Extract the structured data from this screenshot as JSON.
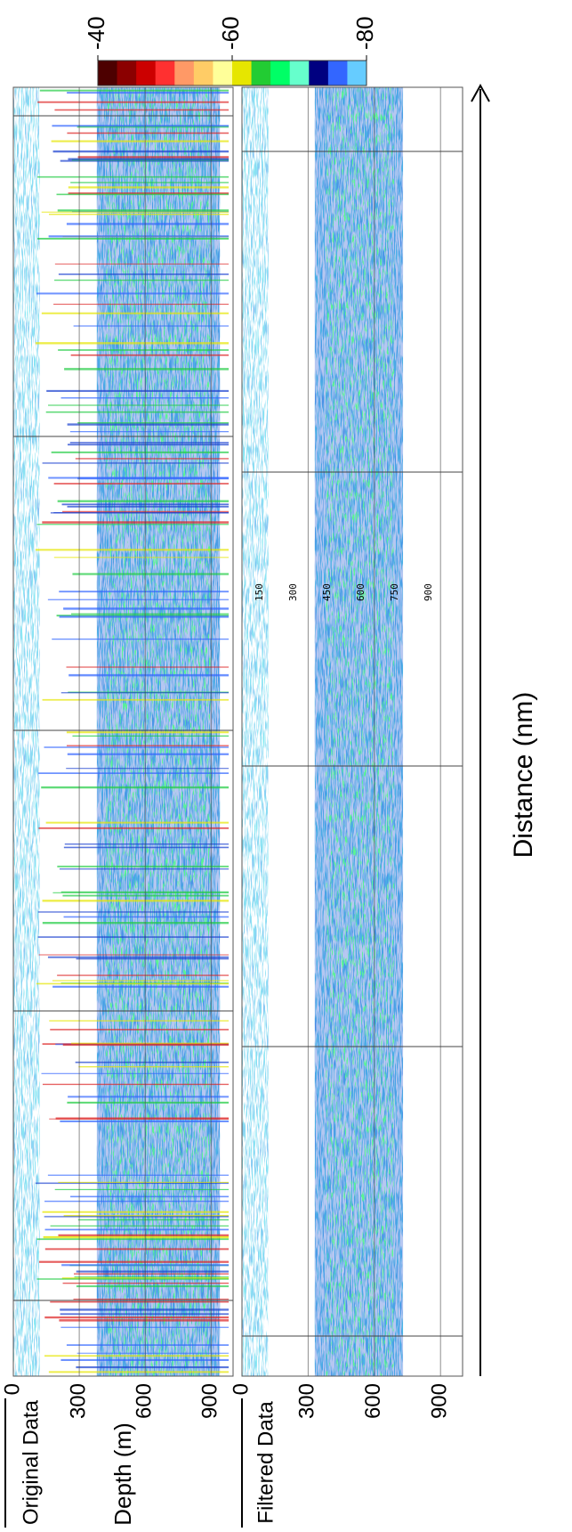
{
  "colorbar": {
    "range": [
      -40,
      -80
    ],
    "ticks": [
      -40,
      -60,
      -80
    ],
    "colors": [
      "#4d0000",
      "#8b0000",
      "#cc0000",
      "#ff3030",
      "#ff9966",
      "#ffcc66",
      "#ffff99",
      "#e6e600",
      "#22cc33",
      "#00ff66",
      "#66ffcc",
      "#000080",
      "#3366ff",
      "#66ccff"
    ]
  },
  "panels": [
    {
      "title": "Original Data"
    },
    {
      "title": "Filtered Data"
    }
  ],
  "depth_axis": {
    "label": "Depth (m)",
    "lim": [
      0,
      1000
    ],
    "ticks": [
      0,
      300,
      600,
      900
    ]
  },
  "distance_axis": {
    "label": "Distance (nm)"
  },
  "inset_labels": [
    "150",
    "300",
    "450",
    "600",
    "750",
    "900"
  ]
}
